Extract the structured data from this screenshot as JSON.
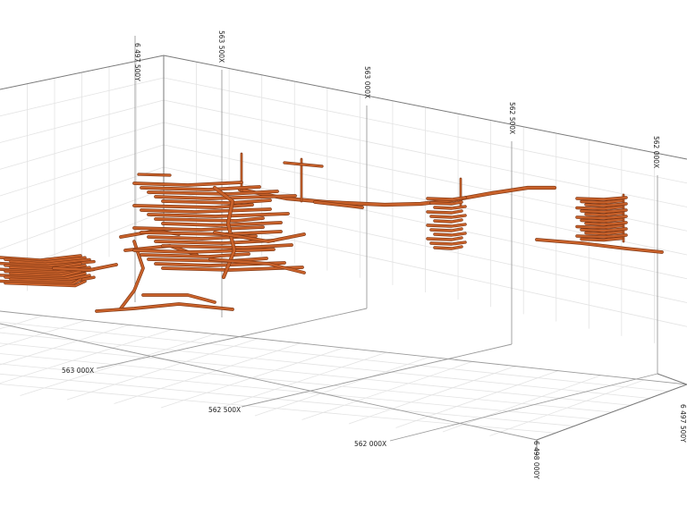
{
  "axis_labels": {
    "back_top": [
      {
        "id": "y-6497500",
        "text": "6 497 500Y"
      },
      {
        "id": "x-563500-top",
        "text": "563 500X"
      },
      {
        "id": "x-563000-top",
        "text": "563 000X"
      },
      {
        "id": "x-562500-top",
        "text": "562 500X"
      },
      {
        "id": "x-562000-top",
        "text": "562 000X"
      }
    ],
    "floor": [
      {
        "id": "x-563000-floor",
        "text": "563 000X"
      },
      {
        "id": "x-562500-floor",
        "text": "562 500X"
      },
      {
        "id": "x-562000-floor",
        "text": "562 000X"
      },
      {
        "id": "y-6498000",
        "text": "6 498 000Y"
      },
      {
        "id": "y-6497500-floor",
        "text": "6 497 500Y"
      }
    ]
  },
  "colors": {
    "grid_minor": "#e3e3e3",
    "grid_major": "#9a9a9a",
    "box_edge": "#7a7a7a",
    "tunnel": "#c8612a",
    "tunnel_dark": "#7a3412"
  }
}
